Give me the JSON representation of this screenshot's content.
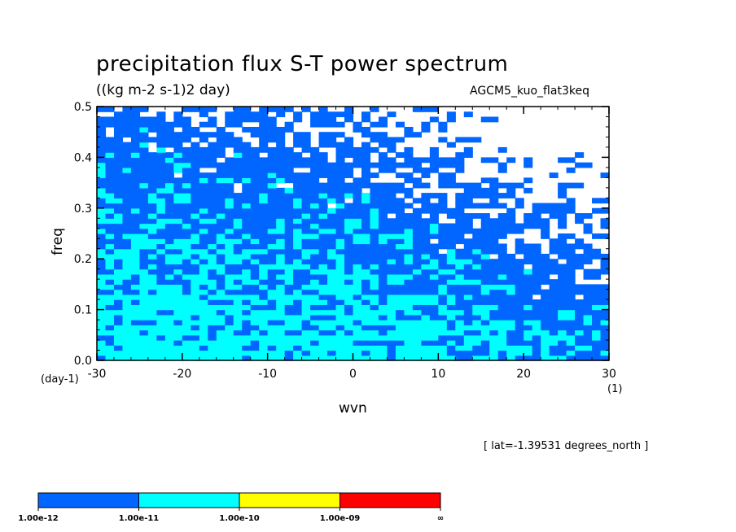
{
  "chart_data": {
    "type": "heatmap",
    "title": "precipitation flux S-T power spectrum",
    "units_label": "((kg m-2 s-1)2 day)",
    "run_name": "AGCM5_kuo_flat3keq",
    "xlabel": "wvn",
    "ylabel": "freq",
    "x_units": "(1)",
    "y_units": "(day-1)",
    "xlim": [
      -30,
      30
    ],
    "ylim": [
      0.0,
      0.5
    ],
    "xticks": [
      -30,
      -20,
      -10,
      0,
      10,
      20,
      30
    ],
    "yticks": [
      0.0,
      0.1,
      0.2,
      0.3,
      0.4,
      0.5
    ],
    "xtick_labels": [
      "-30",
      "-20",
      "-10",
      "0",
      "10",
      "20",
      "30"
    ],
    "ytick_labels": [
      "0.0",
      "0.1",
      "0.2",
      "0.3",
      "0.4",
      "0.5"
    ],
    "annotation": "[ lat=-1.39531 degrees_north ]",
    "colorbar": {
      "levels": [
        "1.00e-12",
        "1.00e-11",
        "1.00e-10",
        "1.00e-09",
        "∞"
      ],
      "colors": [
        "#0066ff",
        "#00ffff",
        "#ffff00",
        "#ff0000"
      ]
    },
    "grid": false
  }
}
